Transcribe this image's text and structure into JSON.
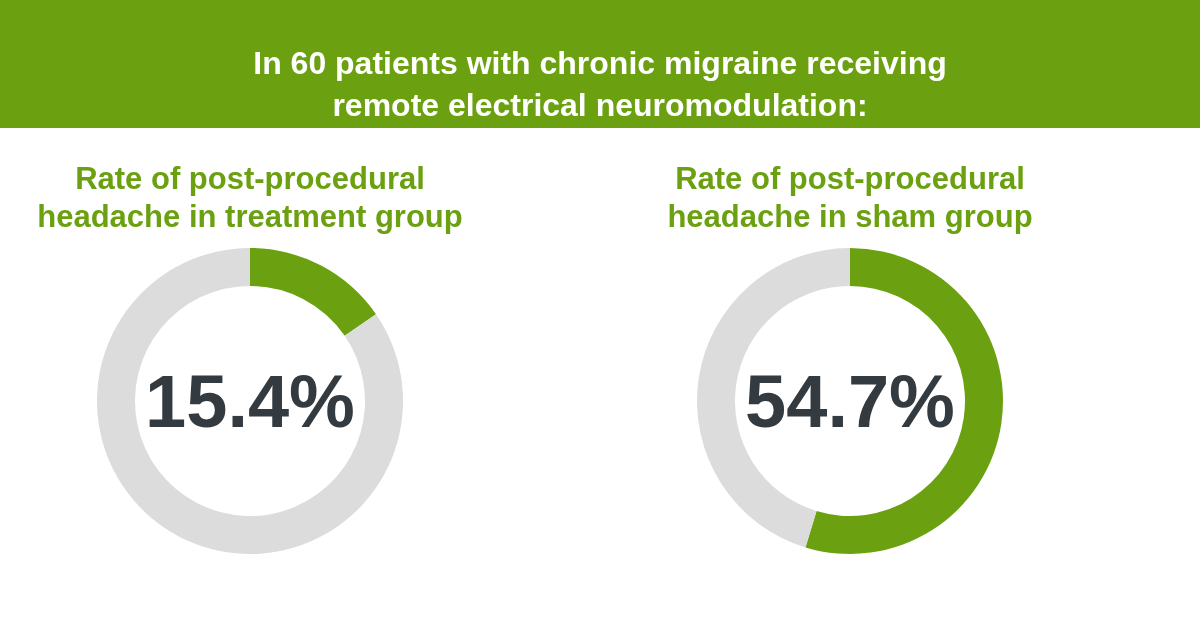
{
  "chart_data": [
    {
      "type": "other",
      "title": "In 60 patients with chronic migraine receiving remote electrical neuromodulation:"
    },
    {
      "type": "donut",
      "title": "Rate of post-procedural headache in treatment group",
      "categories": [
        null,
        null
      ],
      "values": [
        15.4,
        84.6
      ],
      "colors": [
        "#6ba110",
        "#dcdcdc"
      ],
      "value_labels": [
        "15.4%",
        null
      ]
    },
    {
      "type": "donut",
      "title": "Rate of post-procedural headache in sham group",
      "categories": [
        null,
        null
      ],
      "values": [
        54.7,
        45.3
      ],
      "colors": [
        "#6ba110",
        "#dcdcdc"
      ],
      "value_labels": [
        "54.7%",
        null
      ]
    }
  ]
}
